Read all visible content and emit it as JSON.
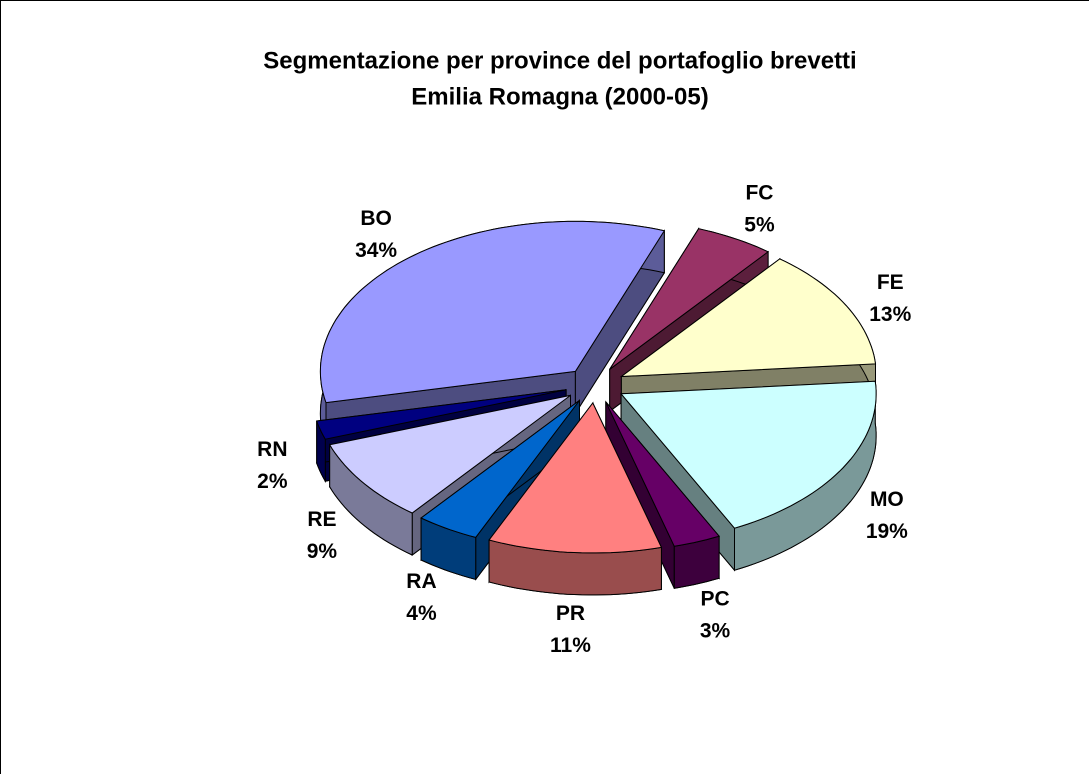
{
  "chart_data": {
    "type": "pie",
    "title": [
      "Segmentazione per province del portafoglio brevetti",
      "Emilia Romagna (2000-05)"
    ],
    "categories": [
      "BO",
      "FC",
      "FE",
      "MO",
      "PC",
      "PR",
      "RA",
      "RE",
      "RN"
    ],
    "values": [
      34,
      5,
      13,
      19,
      3,
      11,
      4,
      9,
      2
    ],
    "value_labels": [
      "34%",
      "5%",
      "13%",
      "19%",
      "3%",
      "11%",
      "4%",
      "9%",
      "2%"
    ],
    "colors": [
      "#9999ff",
      "#993366",
      "#ffffcc",
      "#ccffff",
      "#660066",
      "#ff8080",
      "#0066cc",
      "#ccccff",
      "#000080"
    ]
  }
}
